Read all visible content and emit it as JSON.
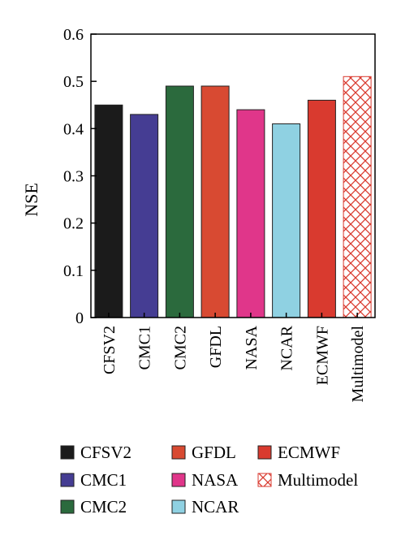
{
  "chart_data": {
    "type": "bar",
    "categories": [
      "CFSV2",
      "CMC1",
      "CMC2",
      "GFDL",
      "NASA",
      "NCAR",
      "ECMWF",
      "Multimodel"
    ],
    "values": [
      0.45,
      0.43,
      0.49,
      0.49,
      0.44,
      0.41,
      0.46,
      0.51
    ],
    "colors": [
      "#1b1b1b",
      "#453d93",
      "#2b6a3d",
      "#d84a32",
      "#e0368a",
      "#8fd1e2",
      "#d93a2f",
      "#ffffff"
    ],
    "patterns": [
      "solid",
      "solid",
      "solid",
      "solid",
      "solid",
      "solid",
      "solid",
      "crosshatch"
    ],
    "pattern_color": "#d93a2f",
    "ylabel": "NSE",
    "xlabel": "",
    "ylim": [
      0,
      0.6
    ],
    "yticks": [
      "0",
      "0.1",
      "0.2",
      "0.3",
      "0.4",
      "0.5",
      "0.6"
    ],
    "ytick_values": [
      0,
      0.1,
      0.2,
      0.3,
      0.4,
      0.5,
      0.6
    ],
    "grid": false,
    "legend": {
      "placement": "bottom",
      "columns": 3,
      "entries": [
        "CFSV2",
        "CMC1",
        "CMC2",
        "GFDL",
        "NASA",
        "NCAR",
        "ECMWF",
        "Multimodel"
      ]
    }
  }
}
